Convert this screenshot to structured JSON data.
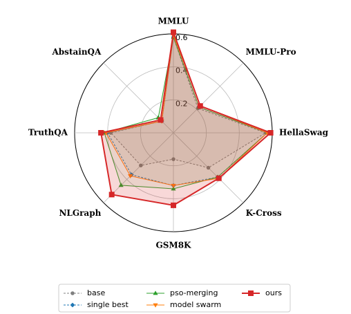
{
  "chart_data": {
    "type": "radar",
    "categories": [
      "MMLU",
      "MMLU-Pro",
      "HellaSwag",
      "K-Cross",
      "GSM8K",
      "NLGraph",
      "TruthQA",
      "AbstainQA"
    ],
    "ylim": [
      0,
      0.6
    ],
    "yticks": [
      0.2,
      0.4,
      0.6
    ],
    "grid": true,
    "legend": "lower center",
    "series": [
      {
        "name": "base",
        "color": "#808080",
        "marker": "o",
        "linestyle": "dashed",
        "values": [
          0.58,
          0.21,
          0.56,
          0.3,
          0.16,
          0.28,
          0.38,
          0.1
        ]
      },
      {
        "name": "single best",
        "color": "#1f77b4",
        "marker": "D",
        "linestyle": "dashed",
        "values": [
          0.58,
          0.22,
          0.57,
          0.38,
          0.32,
          0.36,
          0.4,
          0.1
        ]
      },
      {
        "name": "pso-merging",
        "color": "#2ca02c",
        "marker": "^",
        "linestyle": "solid",
        "values": [
          0.58,
          0.22,
          0.57,
          0.38,
          0.34,
          0.45,
          0.42,
          0.13
        ]
      },
      {
        "name": "model swarm",
        "color": "#ff7f0e",
        "marker": "v",
        "linestyle": "solid",
        "values": [
          0.59,
          0.23,
          0.57,
          0.39,
          0.32,
          0.37,
          0.41,
          0.1
        ]
      },
      {
        "name": "ours",
        "color": "#d62728",
        "marker": "s",
        "linestyle": "solid",
        "values": [
          0.61,
          0.23,
          0.59,
          0.39,
          0.44,
          0.53,
          0.44,
          0.11
        ]
      }
    ]
  }
}
